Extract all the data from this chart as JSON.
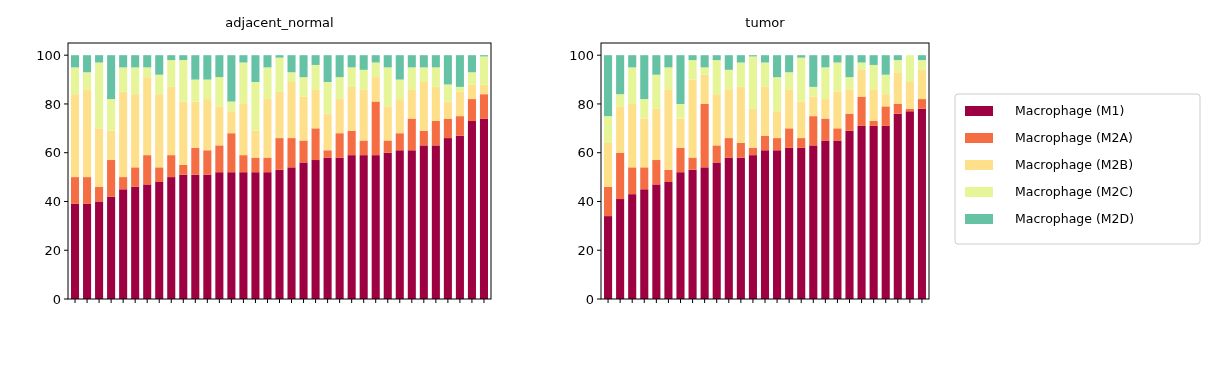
{
  "chart_data": [
    {
      "type": "bar",
      "title": "adjacent_normal",
      "stacked": true,
      "ylim": [
        0,
        105
      ],
      "yticks": [
        0,
        20,
        40,
        60,
        80,
        100
      ],
      "categories": [
        null,
        null,
        null,
        null,
        null,
        null,
        null,
        null,
        null,
        null,
        null,
        null,
        null,
        null,
        null,
        null,
        null,
        null,
        null,
        null,
        null,
        null,
        null,
        null,
        null,
        null,
        null,
        null,
        null,
        null,
        null,
        null,
        null,
        null,
        null
      ],
      "series": [
        {
          "color": "#9e0142",
          "values": [
            39,
            39,
            40,
            42,
            45,
            46,
            47,
            48,
            50,
            51,
            51,
            51,
            52,
            52,
            52,
            52,
            52,
            53,
            54,
            56,
            57,
            58,
            58,
            59,
            59,
            59,
            60,
            61,
            61,
            63,
            63,
            66,
            67,
            73,
            74
          ]
        },
        {
          "color": "#f46d43",
          "values": [
            11,
            11,
            6,
            15,
            5,
            8,
            12,
            6,
            9,
            4,
            11,
            10,
            11,
            16,
            7,
            6,
            6,
            13,
            12,
            9,
            13,
            3,
            10,
            10,
            6,
            22,
            5,
            7,
            13,
            6,
            10,
            8,
            8,
            9,
            10
          ]
        },
        {
          "color": "#fee08b",
          "values": [
            34,
            36,
            24,
            12,
            35,
            30,
            32,
            30,
            28,
            26,
            19,
            21,
            16,
            9,
            21,
            11,
            24,
            19,
            23,
            18,
            16,
            15,
            14,
            18,
            21,
            10,
            14,
            14,
            12,
            20,
            14,
            7,
            10,
            6,
            4
          ]
        },
        {
          "color": "#e6f598",
          "values": [
            11,
            7,
            27,
            13,
            10,
            11,
            4,
            8,
            11,
            17,
            9,
            8,
            12,
            4,
            17,
            20,
            13,
            14,
            4,
            8,
            10,
            13,
            9,
            8,
            8,
            6,
            16,
            8,
            9,
            6,
            8,
            7,
            2,
            5,
            11.5
          ]
        },
        {
          "color": "#66c2a5",
          "values": [
            5,
            7,
            3,
            18,
            5,
            5,
            5,
            8,
            2,
            2,
            10,
            10,
            9,
            19,
            3,
            11,
            5,
            1,
            7,
            9,
            4,
            11,
            9,
            5,
            6,
            3,
            5,
            10,
            5,
            5,
            5,
            12,
            13,
            7,
            0.5
          ]
        }
      ]
    },
    {
      "type": "bar",
      "title": "tumor",
      "stacked": true,
      "legend": "right",
      "ylim": [
        0,
        105
      ],
      "yticks": [
        0,
        20,
        40,
        60,
        80,
        100
      ],
      "categories": [
        null,
        null,
        null,
        null,
        null,
        null,
        null,
        null,
        null,
        null,
        null,
        null,
        null,
        null,
        null,
        null,
        null,
        null,
        null,
        null,
        null,
        null,
        null,
        null,
        null,
        null,
        null
      ],
      "series": [
        {
          "name": "Macrophage (M1)",
          "color": "#9e0142",
          "values": [
            34,
            41,
            43,
            45,
            47,
            48,
            52,
            53,
            54,
            56,
            58,
            58,
            59,
            61,
            61,
            62,
            62,
            63,
            65,
            65,
            69,
            71,
            71,
            71,
            76,
            77,
            78
          ]
        },
        {
          "name": "Macrophage (M2A)",
          "color": "#f46d43",
          "values": [
            12,
            19,
            11,
            9,
            10,
            5,
            10,
            5,
            26,
            7,
            8,
            6,
            3,
            6,
            5,
            8,
            4,
            12,
            9,
            5,
            7,
            12,
            2,
            8,
            4,
            1,
            4
          ]
        },
        {
          "name": "Macrophage (M2B)",
          "color": "#fee08b",
          "values": [
            18,
            19,
            26,
            20,
            21,
            33,
            12,
            32,
            12,
            21,
            20,
            23,
            16,
            20,
            11,
            16,
            15,
            8,
            8,
            15,
            10,
            11,
            13,
            5,
            13,
            11,
            12
          ]
        },
        {
          "name": "Macrophage (M2C)",
          "color": "#e6f598",
          "values": [
            11,
            5,
            15,
            8,
            14,
            9,
            6,
            8,
            3,
            14,
            8,
            10,
            21.5,
            10,
            14,
            7,
            18,
            4,
            13,
            12,
            5,
            3,
            10,
            8,
            5,
            11,
            4
          ]
        },
        {
          "name": "Macrophage (M2D)",
          "color": "#66c2a5",
          "values": [
            25,
            16,
            5,
            18,
            8,
            5,
            20,
            2,
            5,
            2,
            6,
            3,
            0.5,
            3,
            9,
            7,
            1,
            13,
            5,
            3,
            9,
            3,
            4,
            8,
            2,
            0,
            2
          ]
        }
      ]
    }
  ]
}
